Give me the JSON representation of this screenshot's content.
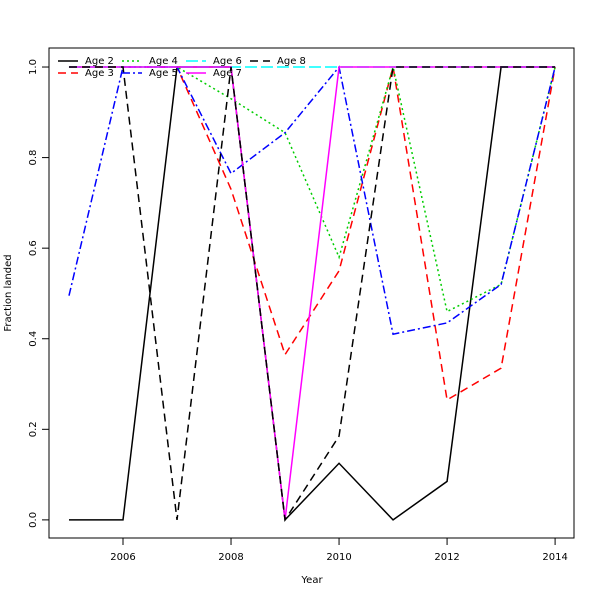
{
  "chart_data": {
    "type": "line",
    "x_label": "Year",
    "y_label": "Fraction landed",
    "x": [
      2005,
      2006,
      2007,
      2008,
      2009,
      2010,
      2011,
      2012,
      2013,
      2014
    ],
    "series": [
      {
        "name": "Age 2",
        "color": "#000000",
        "dash": "solid",
        "values": [
          0,
          0,
          1,
          1,
          0,
          0.125,
          0,
          0.085,
          1,
          1
        ]
      },
      {
        "name": "Age 3",
        "color": "#ff0000",
        "dash": "dashed",
        "values": [
          1,
          1,
          1,
          0.73,
          0.365,
          0.55,
          1,
          0.265,
          0.335,
          1
        ]
      },
      {
        "name": "Age 4",
        "color": "#00cd00",
        "dash": "dotted",
        "values": [
          1,
          1,
          1,
          0.93,
          0.855,
          0.58,
          1,
          0.46,
          0.52,
          1
        ]
      },
      {
        "name": "Age 5",
        "color": "#0000ff",
        "dash": "dashdot",
        "values": [
          0.495,
          1,
          1,
          0.765,
          0.855,
          1,
          0.41,
          0.435,
          0.52,
          1
        ]
      },
      {
        "name": "Age 6",
        "color": "#00ffff",
        "dash": "longdash",
        "values": [
          1,
          1,
          1,
          1,
          1,
          1,
          1,
          1,
          1,
          1
        ]
      },
      {
        "name": "Age 7",
        "color": "#ff00ff",
        "dash": "solid",
        "values": [
          1,
          1,
          1,
          1,
          0,
          1,
          1,
          1,
          1,
          1
        ]
      },
      {
        "name": "Age 8",
        "color": "#000000",
        "dash": "dashed",
        "values": [
          1,
          1,
          0,
          1,
          0,
          0.185,
          1,
          1,
          1,
          1
        ]
      }
    ],
    "xlim": [
      2004.63,
      2014.35
    ],
    "xticks": [
      2006,
      2008,
      2010,
      2012,
      2014
    ],
    "ylim": [
      -0.04,
      1.042
    ],
    "yticks": [
      {
        "value": 0,
        "label": "0.0"
      },
      0.2,
      0.4,
      0.6,
      0.8,
      {
        "value": 1,
        "label": "1.0"
      }
    ],
    "legend": "top-left",
    "grid": false
  }
}
